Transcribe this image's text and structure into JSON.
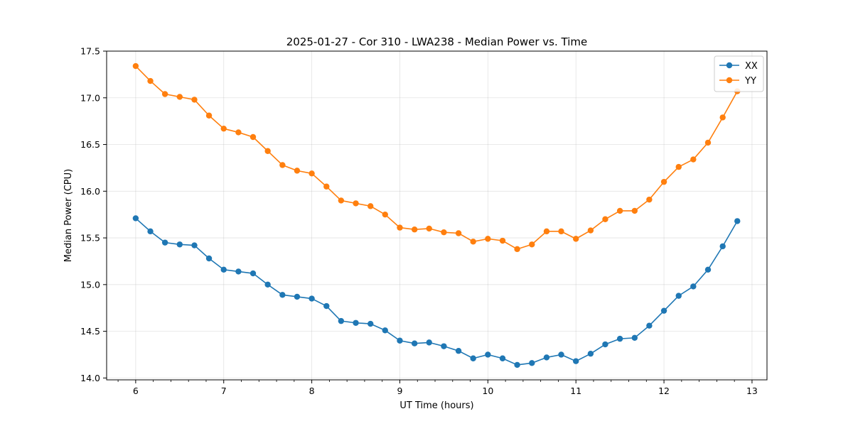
{
  "chart_data": {
    "type": "line",
    "title": "2025-01-27 - Cor 310 - LWA238 - Median Power vs. Time",
    "xlabel": "UT Time (hours)",
    "ylabel": "Median Power (CPU)",
    "xlim": [
      5.67,
      13.17
    ],
    "ylim": [
      13.98,
      17.5
    ],
    "xticks": [
      6,
      7,
      8,
      9,
      10,
      11,
      12,
      13
    ],
    "xtick_labels": [
      "6",
      "7",
      "8",
      "9",
      "10",
      "11",
      "12",
      "13"
    ],
    "yticks": [
      14.0,
      14.5,
      15.0,
      15.5,
      16.0,
      16.5,
      17.0,
      17.5
    ],
    "ytick_labels": [
      "14.0",
      "14.5",
      "15.0",
      "15.5",
      "16.0",
      "16.5",
      "17.0",
      "17.5"
    ],
    "grid": true,
    "legend_position": "top-right",
    "x": [
      6.0,
      6.167,
      6.333,
      6.5,
      6.667,
      6.833,
      7.0,
      7.167,
      7.333,
      7.5,
      7.667,
      7.833,
      8.0,
      8.167,
      8.333,
      8.5,
      8.667,
      8.833,
      9.0,
      9.167,
      9.333,
      9.5,
      9.667,
      9.833,
      10.0,
      10.167,
      10.333,
      10.5,
      10.667,
      10.833,
      11.0,
      11.167,
      11.333,
      11.5,
      11.667,
      11.833,
      12.0,
      12.167,
      12.333,
      12.5,
      12.667,
      12.833
    ],
    "series": [
      {
        "name": "XX",
        "color": "#1f77b4",
        "values": [
          15.71,
          15.57,
          15.45,
          15.43,
          15.42,
          15.28,
          15.16,
          15.14,
          15.12,
          15.0,
          14.89,
          14.87,
          14.85,
          14.77,
          14.61,
          14.59,
          14.58,
          14.51,
          14.4,
          14.37,
          14.38,
          14.34,
          14.29,
          14.21,
          14.25,
          14.21,
          14.14,
          14.16,
          14.22,
          14.25,
          14.18,
          14.26,
          14.36,
          14.42,
          14.43,
          14.56,
          14.72,
          14.88,
          14.98,
          15.16,
          15.41,
          15.68
        ]
      },
      {
        "name": "YY",
        "color": "#ff7f0e",
        "values": [
          17.34,
          17.18,
          17.04,
          17.01,
          16.98,
          16.81,
          16.67,
          16.63,
          16.58,
          16.43,
          16.28,
          16.22,
          16.19,
          16.05,
          15.9,
          15.87,
          15.84,
          15.75,
          15.61,
          15.59,
          15.6,
          15.56,
          15.55,
          15.46,
          15.49,
          15.47,
          15.38,
          15.43,
          15.57,
          15.57,
          15.49,
          15.58,
          15.7,
          15.79,
          15.79,
          15.91,
          16.1,
          16.26,
          16.34,
          16.52,
          16.79,
          17.07
        ]
      }
    ]
  }
}
